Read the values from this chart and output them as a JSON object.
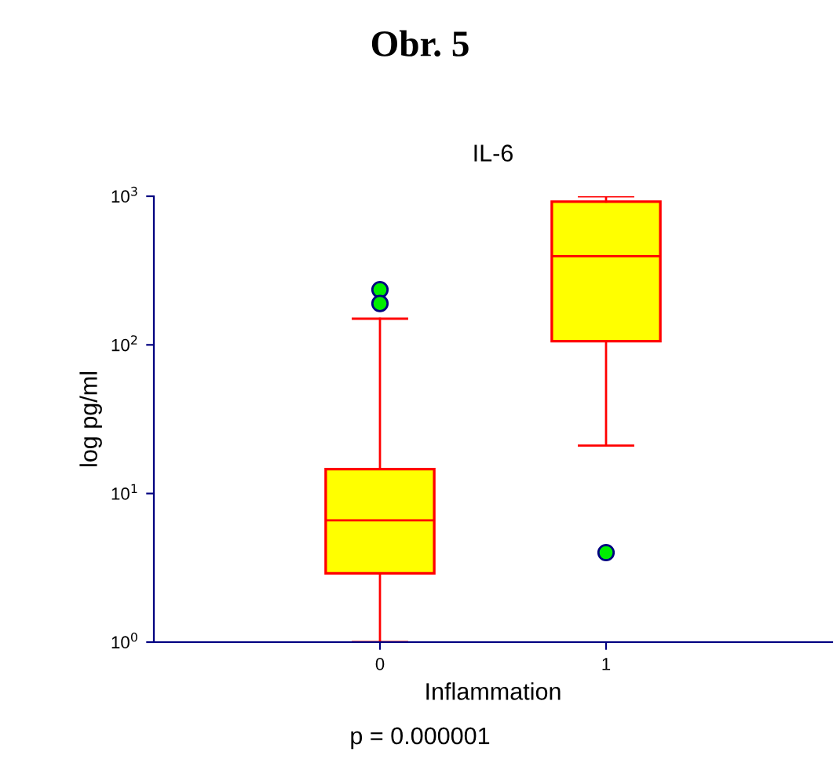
{
  "chart_data": {
    "type": "box",
    "title": "Obr. 5",
    "subtitle": "IL-6",
    "xlabel": "Inflammation",
    "ylabel": "log pg/ml",
    "annotations": [
      "p = 0.000001"
    ],
    "categories": [
      "0",
      "1"
    ],
    "boxes": [
      {
        "low": 1,
        "q1": 2.9,
        "median": 6.6,
        "q3": 14.6,
        "high": 150,
        "outliers": [
          235,
          190
        ]
      },
      {
        "low": 21,
        "q1": 106,
        "median": 395,
        "q3": 920,
        "high": 1000,
        "outliers": [
          4
        ]
      }
    ],
    "color": "#ffff00",
    "log": "y",
    "ylim": [
      1,
      1000
    ],
    "yticks": [
      {
        "value": 1,
        "label": "10$^{0}$"
      },
      {
        "value": 10,
        "label": "10$^{1}$"
      },
      {
        "value": 100,
        "label": "10$^{2}$"
      },
      {
        "value": 1000,
        "label": "10$^{3}$"
      }
    ],
    "grid": false,
    "legend": false
  }
}
